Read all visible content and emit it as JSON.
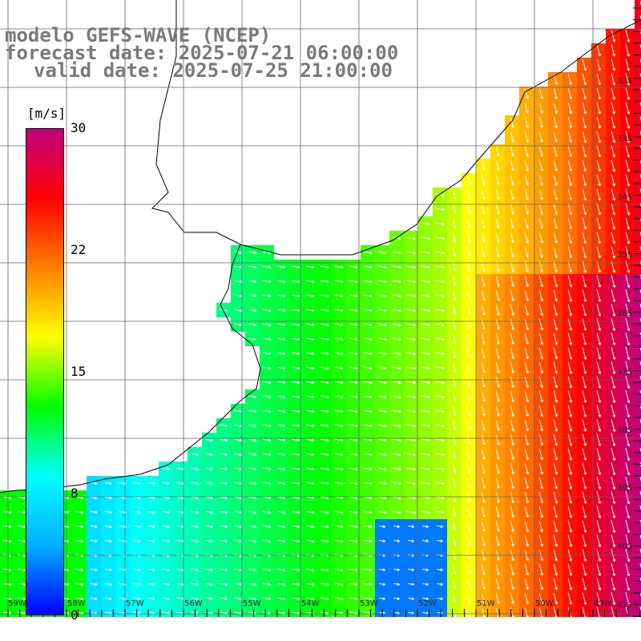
{
  "title": {
    "line1": "modelo GEFS-WAVE (NCEP)",
    "line2": "forecast date: 2025-07-21 06:00:00",
    "line3": "valid date: 2025-07-25 21:00:00"
  },
  "colorbar": {
    "unit": "[m/s]",
    "min": 0,
    "max": 30,
    "ticks": [
      "30",
      "22",
      "15",
      "8",
      "0"
    ],
    "colors": [
      "#0000ff",
      "#00b0ff",
      "#00ffff",
      "#00ff00",
      "#ffff00",
      "#ff8000",
      "#ff0000",
      "#c0007f"
    ]
  },
  "lat_labels": [
    "32S",
    "33S",
    "34S",
    "35S",
    "36S",
    "37S",
    "38S",
    "39S",
    "40S",
    "41S"
  ],
  "lon_labels": [
    "59W",
    "58W",
    "57W",
    "56W",
    "55W",
    "54W",
    "53W",
    "52W",
    "51W",
    "50W",
    "49W"
  ]
}
